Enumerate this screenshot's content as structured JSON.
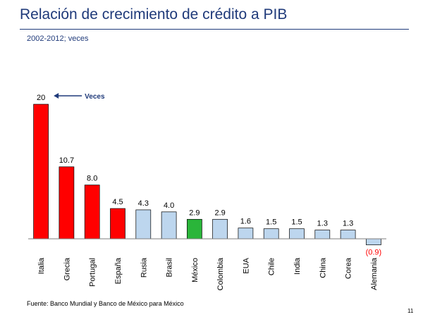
{
  "slide": {
    "title": "Relación de crecimiento de crédito a PIB",
    "source": "Fuente: Banco Mundial y Banco de México para México",
    "page_number": "11"
  },
  "colors": {
    "highlight_red": "#ff0000",
    "mexico_green": "#2ab53a",
    "others_blue": "#bdd6ee",
    "negative_label": "#ff0000",
    "title_blue": "#1f3a7a"
  },
  "chart_data": {
    "type": "bar",
    "subtitle": "2002-2012; veces",
    "categories": [
      "Italia",
      "Grecia",
      "Portugal",
      "España",
      "Rusia",
      "Brasil",
      "México",
      "Colombia",
      "EUA",
      "Chile",
      "India",
      "China",
      "Corea",
      "Alemania"
    ],
    "values": [
      20,
      10.7,
      8.0,
      4.5,
      4.3,
      4.0,
      2.9,
      2.9,
      1.6,
      1.5,
      1.5,
      1.3,
      1.3,
      -0.9
    ],
    "value_labels": [
      "20",
      "10.7",
      "8.0",
      "4.5",
      "4.3",
      "4.0",
      "2.9",
      "2.9",
      "1.6",
      "1.5",
      "1.5",
      "1.3",
      "1.3",
      "(0.9)"
    ],
    "bar_color_groups": [
      "red",
      "red",
      "red",
      "red",
      "blue",
      "blue",
      "green",
      "blue",
      "blue",
      "blue",
      "blue",
      "blue",
      "blue",
      "blue"
    ],
    "ylim": [
      -0.9,
      20
    ],
    "grid": false,
    "legend": "none",
    "annotation": {
      "text": "Veces",
      "points_to": "Italia"
    }
  }
}
